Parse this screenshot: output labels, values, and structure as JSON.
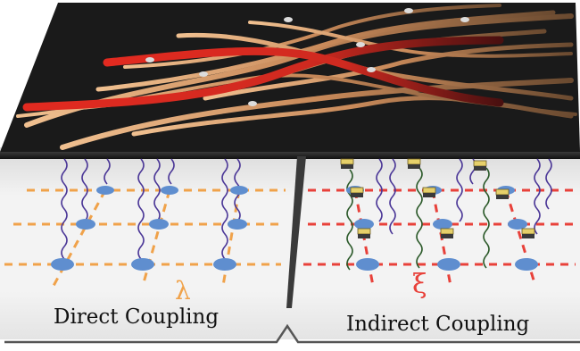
{
  "labels": {
    "direct": "Direct Coupling",
    "indirect": "Indirect Coupling",
    "lambda": "λ",
    "xi": "ξ"
  },
  "colors": {
    "slab_dark": "#1c1c1c",
    "strand_tan": "#d9a06e",
    "strand_red": "#d42a20",
    "grid_orange": "#f0a24a",
    "grid_red": "#e8413a",
    "node_blue": "#5f8ecf",
    "wave_purple": "#4b3797",
    "wave_green": "#2c5a2a",
    "cube_yellow": "#e6d06a"
  },
  "icons": {
    "direct_node": "blue-disc-icon",
    "indirect_node": "blue-disc-icon",
    "mediator": "stacked-cube-icon"
  }
}
